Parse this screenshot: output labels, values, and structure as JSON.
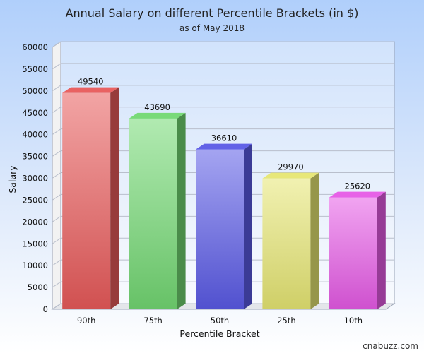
{
  "chart_data": {
    "type": "bar",
    "title": "Annual Salary on different Percentile Brackets (in $)",
    "subtitle": "as of May 2018",
    "xlabel": "Percentile Bracket",
    "ylabel": "Salary",
    "categories": [
      "90th",
      "75th",
      "50th",
      "25th",
      "10th"
    ],
    "values": [
      49540,
      43690,
      36610,
      29970,
      25620
    ],
    "data_labels": [
      "49540",
      "43690",
      "36610",
      "29970",
      "25620"
    ],
    "ylim": [
      0,
      60000
    ],
    "yticks": [
      0,
      5000,
      10000,
      15000,
      20000,
      25000,
      30000,
      35000,
      40000,
      45000,
      50000,
      55000,
      60000
    ],
    "grid": true,
    "legend": "none",
    "colors": [
      "#e85a5a",
      "#72d872",
      "#5a5ae6",
      "#e6e672",
      "#e65ae6"
    ],
    "credit": "cnabuzz.com"
  }
}
